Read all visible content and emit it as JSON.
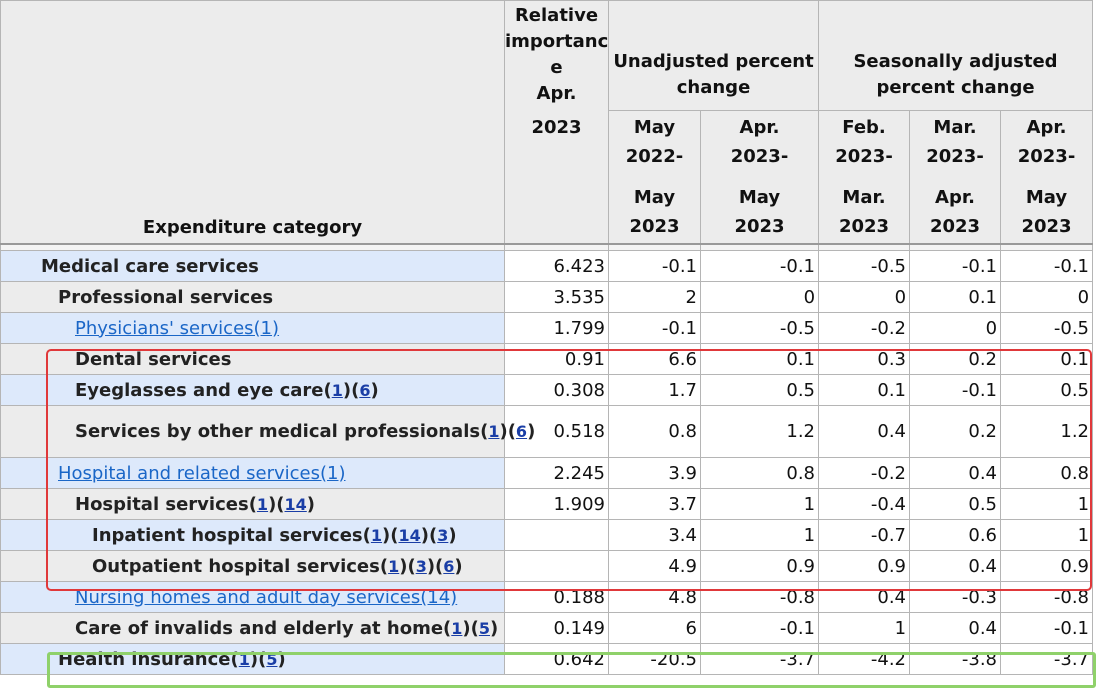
{
  "header": {
    "category_label": "Expenditure category",
    "relative_importance": [
      "Relative",
      "importanc",
      "e",
      "Apr."
    ],
    "relative_year": "2023",
    "unadjusted_label": "Unadjusted percent change",
    "seasonal_label": "Seasonally adjusted percent change",
    "periods": [
      {
        "l1": "May",
        "l2": "2022-",
        "l3": "May",
        "l4": "2023"
      },
      {
        "l1": "Apr.",
        "l2": "2023-",
        "l3": "May",
        "l4": "2023"
      },
      {
        "l1": "Feb.",
        "l2": "2023-",
        "l3": "Mar.",
        "l4": "2023"
      },
      {
        "l1": "Mar.",
        "l2": "2023-",
        "l3": "Apr.",
        "l4": "2023"
      },
      {
        "l1": "Apr.",
        "l2": "2023-",
        "l3": "May",
        "l4": "2023"
      }
    ]
  },
  "rows": [
    {
      "label": "Medical care services",
      "fns": [],
      "rel": "6.423",
      "v": [
        "-0.1",
        "-0.1",
        "-0.5",
        "-0.1",
        "-0.1"
      ]
    },
    {
      "label": "Professional services",
      "fns": [],
      "rel": "3.535",
      "v": [
        "2",
        "0",
        "0",
        "0.1",
        "0"
      ]
    },
    {
      "label": "Physicians' services(1)",
      "fns": [],
      "rel": "1.799",
      "v": [
        "-0.1",
        "-0.5",
        "-0.2",
        "0",
        "-0.5"
      ]
    },
    {
      "label": "Dental services",
      "fns": [],
      "rel": "0.91",
      "v": [
        "6.6",
        "0.1",
        "0.3",
        "0.2",
        "0.1"
      ]
    },
    {
      "label": "Eyeglasses and eye care",
      "fns": [
        "1",
        "6"
      ],
      "rel": "0.308",
      "v": [
        "1.7",
        "0.5",
        "0.1",
        "-0.1",
        "0.5"
      ]
    },
    {
      "label": "Services by other medical professionals",
      "fns": [
        "1",
        "6"
      ],
      "rel": "0.518",
      "v": [
        "0.8",
        "1.2",
        "0.4",
        "0.2",
        "1.2"
      ]
    },
    {
      "label": "Hospital and related services(1)",
      "fns": [],
      "rel": "2.245",
      "v": [
        "3.9",
        "0.8",
        "-0.2",
        "0.4",
        "0.8"
      ]
    },
    {
      "label": "Hospital services",
      "fns": [
        "1",
        "14"
      ],
      "rel": "1.909",
      "v": [
        "3.7",
        "1",
        "-0.4",
        "0.5",
        "1"
      ]
    },
    {
      "label": "Inpatient hospital services",
      "fns": [
        "1",
        "14",
        "3"
      ],
      "rel": "",
      "v": [
        "3.4",
        "1",
        "-0.7",
        "0.6",
        "1"
      ]
    },
    {
      "label": "Outpatient hospital services",
      "fns": [
        "1",
        "3",
        "6"
      ],
      "rel": "",
      "v": [
        "4.9",
        "0.9",
        "0.9",
        "0.4",
        "0.9"
      ]
    },
    {
      "label": "Nursing homes and adult day services(14)",
      "fns": [],
      "rel": "0.188",
      "v": [
        "4.8",
        "-0.8",
        "0.4",
        "-0.3",
        "-0.8"
      ]
    },
    {
      "label": "Care of invalids and elderly at home",
      "fns": [
        "1",
        "5"
      ],
      "rel": "0.149",
      "v": [
        "6",
        "-0.1",
        "1",
        "0.4",
        "-0.1"
      ]
    },
    {
      "label": "Health insurance",
      "fns": [
        "1",
        "5"
      ],
      "rel": "0.642",
      "v": [
        "-20.5",
        "-3.7",
        "-4.2",
        "-3.8",
        "-3.7"
      ]
    }
  ]
}
